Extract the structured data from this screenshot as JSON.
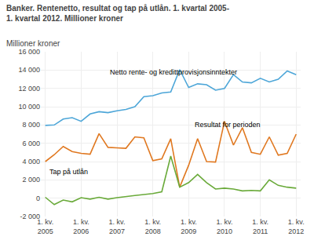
{
  "chart_data": {
    "type": "line",
    "title": "Banker. Rentenetto, resultat og tap på utlån. 1. kvartal 2005-\n1. kvartal 2012. Millioner kroner",
    "ylabel": "Millioner kroner",
    "categories": [
      "1. kv.\n2005",
      null,
      null,
      null,
      "1. kv.\n2006",
      null,
      null,
      null,
      "1. kv.\n2007",
      null,
      null,
      null,
      "1. kv.\n2008",
      null,
      null,
      null,
      "1. kv.\n2009",
      null,
      null,
      null,
      "1. kv.\n2010",
      null,
      null,
      null,
      "1. kv.\n2011",
      null,
      null,
      null,
      "1. kv.\n2012"
    ],
    "series": [
      {
        "name": "Netto rente- og kredittprovisjonsinntekter",
        "color": "#4da6d8",
        "values": [
          7950,
          8000,
          8650,
          8800,
          8400,
          9200,
          9450,
          9350,
          9550,
          9700,
          10000,
          11100,
          11200,
          11500,
          11600,
          14050,
          12100,
          12500,
          12400,
          11800,
          12000,
          13500,
          12700,
          12600,
          13100,
          12700,
          13000,
          13900,
          13500
        ]
      },
      {
        "name": "Resultat for perioden",
        "color": "#e07820",
        "values": [
          4000,
          4750,
          5650,
          5100,
          4900,
          4800,
          7050,
          5550,
          5500,
          5450,
          6700,
          6600,
          4100,
          4300,
          6500,
          1200,
          3600,
          6500,
          4000,
          3950,
          8400,
          5800,
          7700,
          5000,
          4800,
          6700,
          4700,
          4900,
          7000
        ]
      },
      {
        "name": "Tap på utlån",
        "color": "#6aaa3a",
        "values": [
          100,
          -700,
          -200,
          -400,
          50,
          -100,
          100,
          -100,
          50,
          200,
          300,
          400,
          500,
          700,
          4600,
          1200,
          1700,
          2600,
          1700,
          1000,
          1100,
          1000,
          800,
          850,
          800,
          2000,
          1400,
          1200,
          1100
        ]
      }
    ],
    "ylim": [
      -2000,
      16000
    ],
    "yticks": [
      {
        "value": -2000,
        "label": "-2 000"
      },
      0,
      {
        "value": 2000,
        "label": "2 000"
      },
      {
        "value": 4000,
        "label": "4 000"
      },
      {
        "value": 6000,
        "label": "6 000"
      },
      {
        "value": 8000,
        "label": "8 000"
      },
      {
        "value": 10000,
        "label": "10 000"
      },
      {
        "value": 12000,
        "label": "12 000"
      },
      {
        "value": 14000,
        "label": "14 000"
      },
      {
        "value": 16000,
        "label": "16 000"
      }
    ],
    "grid": true
  }
}
